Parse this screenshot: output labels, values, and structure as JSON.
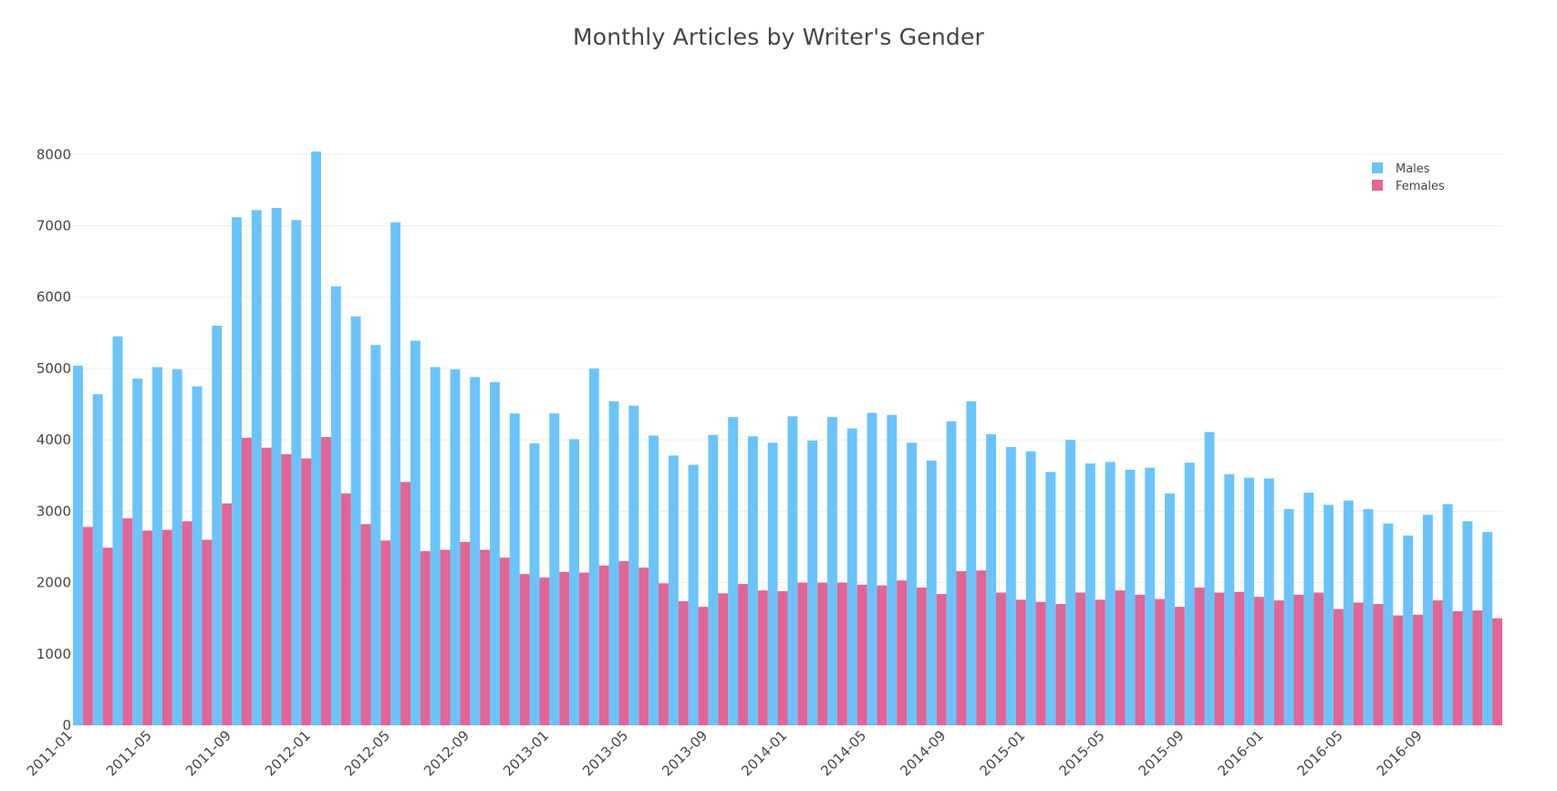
{
  "chart_data": {
    "type": "bar",
    "title": "Monthly Articles by Writer's Gender",
    "xlabel": "",
    "ylabel": "",
    "ylim": [
      0,
      8400
    ],
    "yticks": [
      0,
      1000,
      2000,
      3000,
      4000,
      5000,
      6000,
      7000,
      8000
    ],
    "grid": "horizontal",
    "legend_position": "top-right",
    "x_tick_labels": [
      "2011-01",
      "2011-05",
      "2011-09",
      "2012-01",
      "2012-05",
      "2012-09",
      "2013-01",
      "2013-05",
      "2013-09",
      "2014-01",
      "2014-05",
      "2014-09",
      "2015-01",
      "2015-05",
      "2015-09",
      "2016-01",
      "2016-05",
      "2016-09"
    ],
    "categories": [
      "2011-01",
      "2011-02",
      "2011-03",
      "2011-04",
      "2011-05",
      "2011-06",
      "2011-07",
      "2011-08",
      "2011-09",
      "2011-10",
      "2011-11",
      "2011-12",
      "2012-01",
      "2012-02",
      "2012-03",
      "2012-04",
      "2012-05",
      "2012-06",
      "2012-07",
      "2012-08",
      "2012-09",
      "2012-10",
      "2012-11",
      "2012-12",
      "2013-01",
      "2013-02",
      "2013-03",
      "2013-04",
      "2013-05",
      "2013-06",
      "2013-07",
      "2013-08",
      "2013-09",
      "2013-10",
      "2013-11",
      "2013-12",
      "2014-01",
      "2014-02",
      "2014-03",
      "2014-04",
      "2014-05",
      "2014-06",
      "2014-07",
      "2014-08",
      "2014-09",
      "2014-10",
      "2014-11",
      "2014-12",
      "2015-01",
      "2015-02",
      "2015-03",
      "2015-04",
      "2015-05",
      "2015-06",
      "2015-07",
      "2015-08",
      "2015-09",
      "2015-10",
      "2015-11",
      "2015-12",
      "2016-01",
      "2016-02",
      "2016-03",
      "2016-04",
      "2016-05",
      "2016-06",
      "2016-07",
      "2016-08",
      "2016-09",
      "2016-10",
      "2016-11",
      "2016-12"
    ],
    "series": [
      {
        "name": "Males",
        "color": "#6ac4fb",
        "values": [
          5040,
          4640,
          5450,
          4860,
          5020,
          4990,
          4750,
          5600,
          7120,
          7220,
          7250,
          7080,
          8040,
          6150,
          5730,
          5330,
          7050,
          5390,
          5020,
          4990,
          4880,
          4810,
          4370,
          3950,
          4370,
          4010,
          5000,
          4540,
          4480,
          4060,
          3780,
          3650,
          4070,
          4320,
          4050,
          3960,
          4330,
          3990,
          4320,
          4160,
          4380,
          4350,
          3960,
          3710,
          4260,
          4540,
          4080,
          3900,
          3840,
          3550,
          4000,
          3670,
          3690,
          3580,
          3610,
          3250,
          3680,
          4110,
          3520,
          3470,
          3460,
          3030,
          3260,
          3090,
          3150,
          3030,
          2830,
          2660,
          2950,
          3100,
          2860,
          2710
        ]
      },
      {
        "name": "Females",
        "color": "#e16595",
        "values": [
          2780,
          2490,
          2900,
          2730,
          2740,
          2860,
          2600,
          3110,
          4030,
          3890,
          3800,
          3740,
          4040,
          3250,
          2820,
          2590,
          3410,
          2440,
          2460,
          2570,
          2460,
          2350,
          2120,
          2070,
          2150,
          2140,
          2240,
          2300,
          2210,
          1990,
          1740,
          1660,
          1850,
          1980,
          1890,
          1880,
          2000,
          2000,
          2000,
          1970,
          1960,
          2030,
          1930,
          1840,
          2160,
          2170,
          1860,
          1760,
          1730,
          1700,
          1860,
          1760,
          1890,
          1830,
          1770,
          1660,
          1930,
          1860,
          1870,
          1800,
          1750,
          1830,
          1860,
          1630,
          1720,
          1700,
          1540,
          1550,
          1750,
          1600,
          1610,
          1500
        ]
      }
    ]
  }
}
